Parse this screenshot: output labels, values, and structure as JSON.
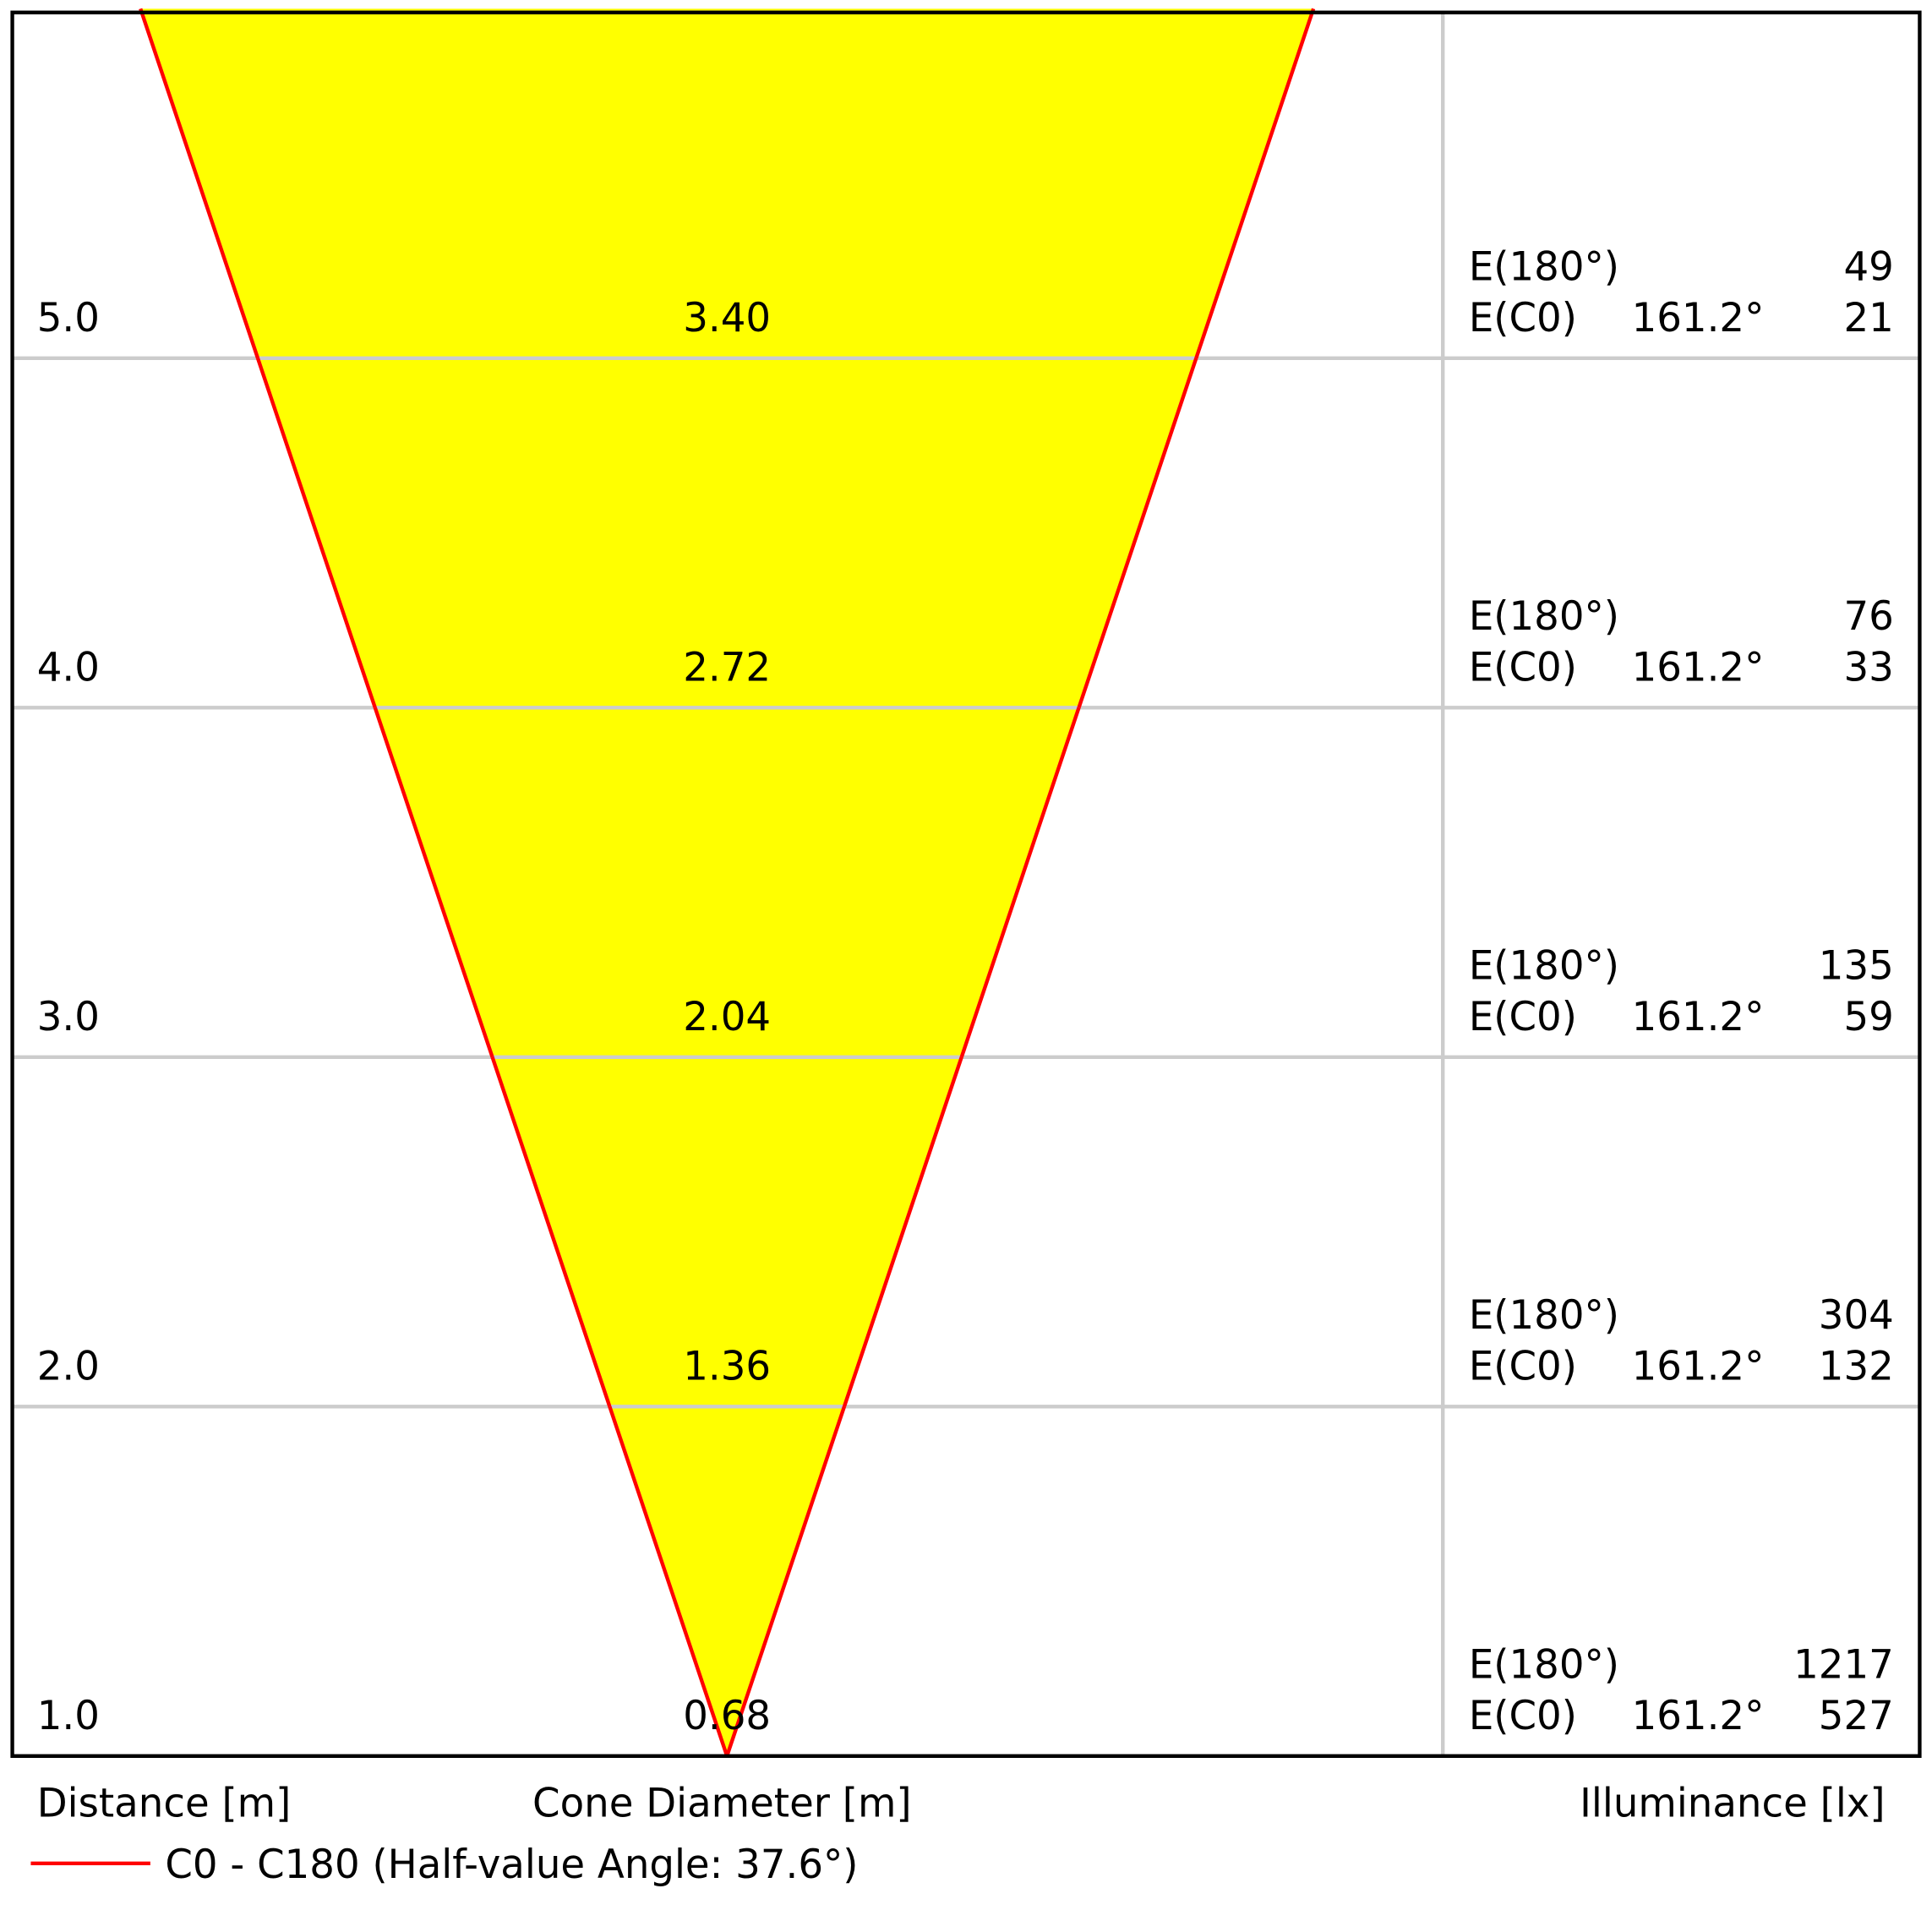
{
  "chart_data": {
    "type": "cone",
    "distance_label": "Distance [m]",
    "diameter_label": "Cone Diameter [m]",
    "illuminance_label": "Illuminance [lx]",
    "legend": "C0 - C180 (Half-value Angle: 37.6°)",
    "color": "#ff0000",
    "fill": "#ffff00",
    "e180_label": "E(180°)",
    "ec0_label": "E(C0)",
    "distances": [
      {
        "value": 1,
        "label": "1.0"
      },
      {
        "value": 2,
        "label": "2.0"
      },
      {
        "value": 3,
        "label": "3.0"
      },
      {
        "value": 4,
        "label": "4.0"
      },
      {
        "value": 5,
        "label": "5.0"
      }
    ],
    "diameters": [
      0.68,
      1.36,
      2.04,
      2.72,
      {
        "value": 3.4,
        "label": "3.40"
      }
    ],
    "e180": [
      1217,
      304,
      135,
      76,
      49
    ],
    "ec0": [
      527,
      132,
      59,
      33,
      21
    ],
    "ec0_angles": [
      "161.2°",
      "161.2°",
      "161.2°",
      "161.2°",
      "161.2°"
    ]
  }
}
